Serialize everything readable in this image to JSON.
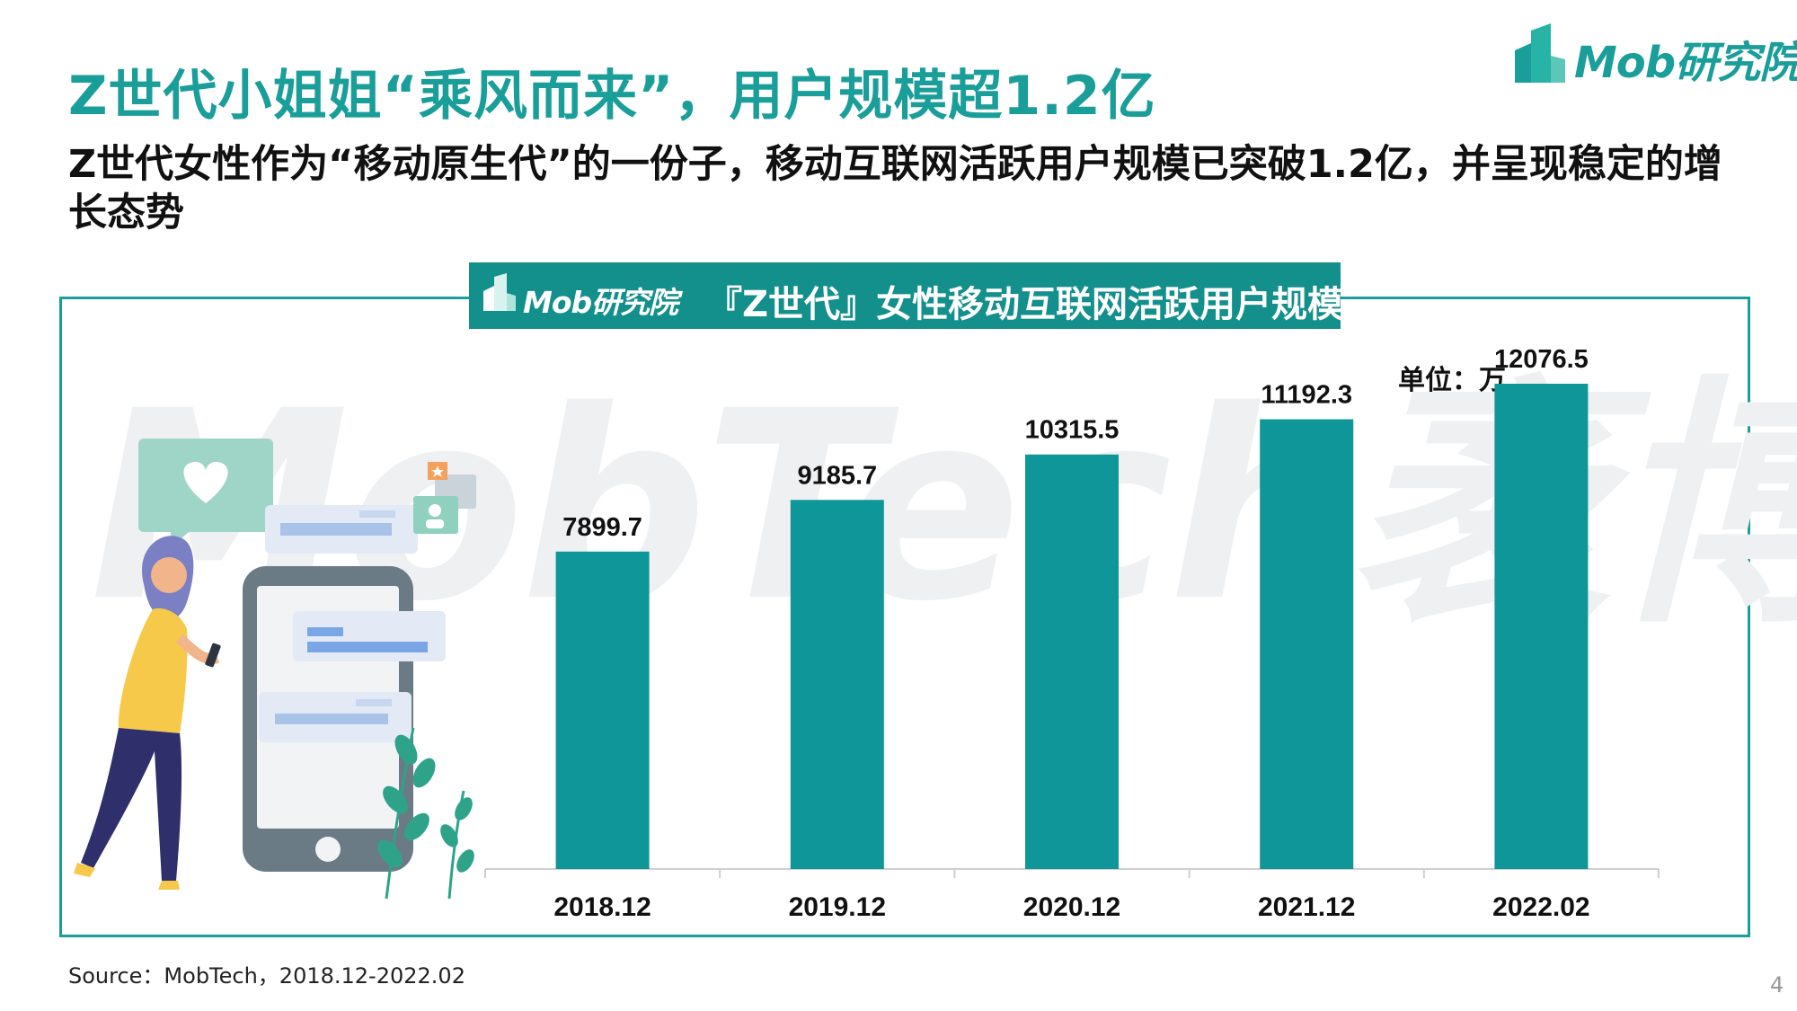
{
  "header": {
    "title": "Z世代小姐姐“乘风而来”，用户规模超1.2亿",
    "subtitle": "Z世代女性作为“移动原生代”的一份子，移动互联网活跃用户规模已突破1.2亿，并呈现稳定的增长态势",
    "logo_text": "Mob研究院"
  },
  "panel": {
    "logo_text": "Mob研究院",
    "title": "『Z世代』女性移动互联网活跃用户规模",
    "watermark": "MobTech袤博"
  },
  "colors": {
    "accent": "#1a9e9a",
    "bar": "#0e9698",
    "header_bg": "#138f8c"
  },
  "chart_data": {
    "type": "bar",
    "unit_label": "单位：万",
    "categories": [
      "2018.12",
      "2019.12",
      "2020.12",
      "2021.12",
      "2022.02"
    ],
    "values": [
      7899.7,
      9185.7,
      10315.5,
      11192.3,
      12076.5
    ],
    "value_labels": [
      "7899.7",
      "9185.7",
      "10315.5",
      "11192.3",
      "12076.5"
    ],
    "ylim": [
      0,
      14000
    ],
    "grid": false,
    "legend": "none"
  },
  "footer": {
    "source": "Source：MobTech，2018.12-2022.02",
    "page_number": "4"
  }
}
